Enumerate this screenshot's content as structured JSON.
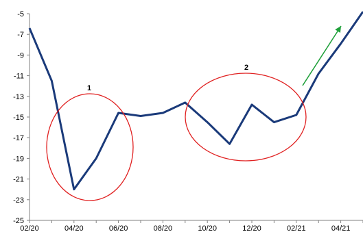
{
  "chart_data": {
    "type": "line",
    "x": [
      "02/20",
      "03/20",
      "04/20",
      "05/20",
      "06/20",
      "07/20",
      "08/20",
      "09/20",
      "10/20",
      "11/20",
      "12/20",
      "01/21",
      "02/21",
      "03/21",
      "04/21",
      "05/21"
    ],
    "x_tick_labels": [
      "02/20",
      "04/20",
      "06/20",
      "08/20",
      "10/20",
      "12/20",
      "02/21",
      "04/21"
    ],
    "series": [
      {
        "values": [
          -6.4,
          -11.5,
          -22.0,
          -19.0,
          -14.6,
          -14.9,
          -14.6,
          -13.6,
          -15.5,
          -17.6,
          -13.8,
          -15.5,
          -14.8,
          -10.8,
          -7.9,
          -4.8
        ]
      }
    ],
    "ylim": [
      -25,
      -5
    ],
    "y_ticks": [
      -5,
      -7,
      -9,
      -11,
      -13,
      -15,
      -17,
      -19,
      -21,
      -23,
      -25
    ],
    "grid": false,
    "annotations": [
      {
        "kind": "ellipse",
        "label": "1",
        "color": "#e02020"
      },
      {
        "kind": "ellipse",
        "label": "2",
        "color": "#e02020"
      },
      {
        "kind": "arrow",
        "color": "#1fa03a"
      }
    ],
    "colors": {
      "line": "#1a3a7a",
      "ellipse": "#e02020",
      "arrow": "#1fa03a",
      "axis": "#808080"
    }
  }
}
